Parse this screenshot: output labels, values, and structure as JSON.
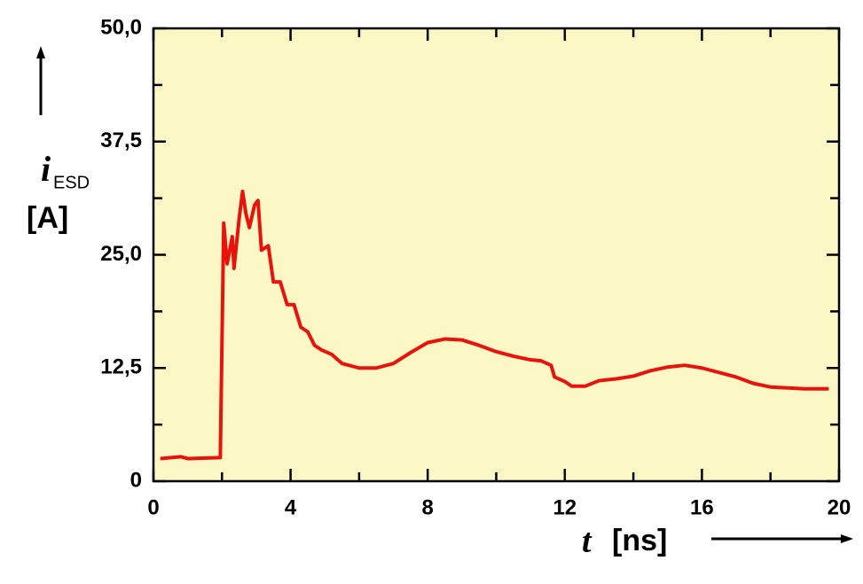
{
  "chart_data": {
    "type": "line",
    "x_label": {
      "symbol": "t",
      "unit": "[ns]"
    },
    "y_label": {
      "symbol": "i",
      "subscript": "ESD",
      "unit": "[A]"
    },
    "series": [
      {
        "color": "#e8140c",
        "x": [
          0.2,
          0.8,
          1.0,
          1.95,
          2.05,
          2.15,
          2.3,
          2.35,
          2.5,
          2.6,
          2.7,
          2.8,
          2.95,
          3.05,
          3.15,
          3.35,
          3.5,
          3.7,
          3.9,
          4.1,
          4.3,
          4.5,
          4.7,
          4.9,
          5.2,
          5.5,
          6.0,
          6.5,
          7.0,
          7.5,
          8.0,
          8.5,
          9.0,
          9.5,
          10.0,
          10.5,
          11.0,
          11.3,
          11.6,
          11.7,
          12.0,
          12.2,
          12.6,
          13.0,
          13.5,
          14.0,
          14.5,
          15.0,
          15.5,
          16.0,
          16.5,
          17.0,
          17.5,
          18.0,
          18.5,
          19.0,
          19.7
        ],
        "values": [
          2.5,
          2.7,
          2.5,
          2.6,
          28.5,
          24,
          27,
          23.5,
          29,
          32,
          29.5,
          28,
          30.5,
          31,
          25.5,
          26,
          22,
          22,
          19.5,
          19.5,
          17,
          16.5,
          15,
          14.5,
          14,
          13,
          12.5,
          12.5,
          13,
          14.2,
          15.3,
          15.7,
          15.6,
          15,
          14.3,
          13.8,
          13.4,
          13.3,
          12.8,
          11.5,
          11,
          10.5,
          10.5,
          11.1,
          11.3,
          11.6,
          12.2,
          12.6,
          12.8,
          12.5,
          12,
          11.5,
          10.8,
          10.4,
          10.3,
          10.2,
          10.2
        ]
      }
    ],
    "xlim": [
      0,
      20
    ],
    "xticks": [
      0,
      4,
      8,
      12,
      16,
      20
    ],
    "xminorticks": [
      2,
      6,
      10,
      14,
      18
    ],
    "ylim": [
      0,
      50
    ],
    "yticks": [
      0,
      {
        "value": 12.5,
        "label": "12,5"
      },
      {
        "value": 25,
        "label": "25,0"
      },
      {
        "value": 37.5,
        "label": "37,5"
      },
      {
        "value": 50,
        "label": "50,0"
      }
    ],
    "yminorticks": [
      6.25,
      18.75,
      31.25,
      43.75
    ],
    "background": "#fcf8c6"
  }
}
